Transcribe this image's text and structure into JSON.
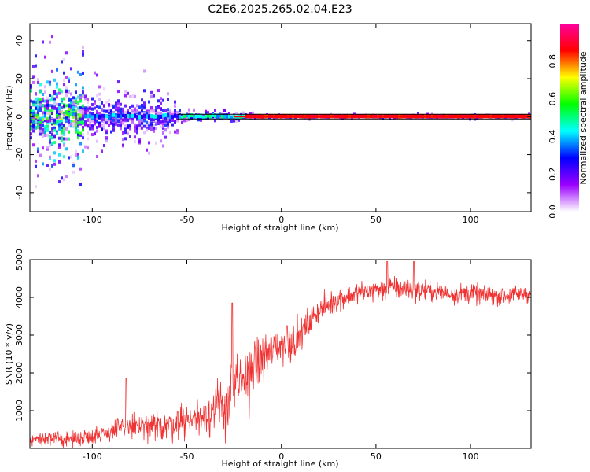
{
  "figure": {
    "title": "C2E6.2025.265.02.04.E23"
  },
  "chart_data": [
    {
      "type": "heatmap",
      "xlabel": "Height of straight line (km)",
      "ylabel": "Frequency (Hz)",
      "xlim": [
        -133,
        132
      ],
      "ylim": [
        -50,
        49
      ],
      "xticks": [
        -100,
        -50,
        0,
        50,
        100
      ],
      "yticks": [
        -40,
        -20,
        0,
        20,
        40
      ],
      "colorbar": {
        "label": "Normalized spectral amplitude",
        "range": [
          0,
          1
        ],
        "ticks": [
          0.0,
          0.2,
          0.4,
          0.6,
          0.8
        ],
        "colormap": [
          "#ffffff",
          "#9b00ff",
          "#0000ff",
          "#00ffff",
          "#00ff00",
          "#ffff00",
          "#ff0000",
          "#ff00a0"
        ]
      },
      "features": {
        "carrier_frequency_hz": 0,
        "carrier_visible_from_km": -55,
        "noise_region_km": [
          -133,
          -55
        ],
        "strong_scatter_region_km": [
          -133,
          -105
        ]
      },
      "line_color": "#000000"
    },
    {
      "type": "line",
      "xlabel": "Height of straight line (km)",
      "ylabel": "SNR (10 * v/v)",
      "xlim": [
        -133,
        132
      ],
      "ylim": [
        0,
        5000
      ],
      "xticks": [
        -100,
        -50,
        0,
        50,
        100
      ],
      "yticks": [
        1000,
        2000,
        3000,
        4000,
        5000
      ],
      "series_color": "#f03232",
      "trend": {
        "x": [
          -133,
          -110,
          -100,
          -90,
          -80,
          -70,
          -60,
          -50,
          -40,
          -30,
          -25,
          -20,
          -15,
          -10,
          -5,
          0,
          5,
          10,
          15,
          20,
          25,
          30,
          40,
          50,
          60,
          70,
          80,
          90,
          100,
          110,
          120,
          132
        ],
        "y": [
          250,
          250,
          330,
          450,
          600,
          550,
          620,
          750,
          900,
          1150,
          1500,
          1800,
          2100,
          2400,
          2600,
          2750,
          2800,
          3000,
          3350,
          3700,
          3800,
          3950,
          4100,
          4200,
          4250,
          4200,
          4150,
          4100,
          4100,
          4050,
          4050,
          4100
        ]
      },
      "noise_amplitude": {
        "x": [
          -133,
          -100,
          -80,
          -60,
          -40,
          -30,
          -20,
          -10,
          0,
          10,
          20,
          40,
          60,
          132
        ],
        "y": [
          130,
          180,
          300,
          350,
          450,
          700,
          750,
          550,
          450,
          350,
          280,
          250,
          250,
          200
        ]
      },
      "peaks": {
        "x": [
          -82,
          -26,
          3,
          56,
          70
        ],
        "y": [
          1850,
          3850,
          3250,
          4950,
          4950
        ]
      }
    }
  ]
}
